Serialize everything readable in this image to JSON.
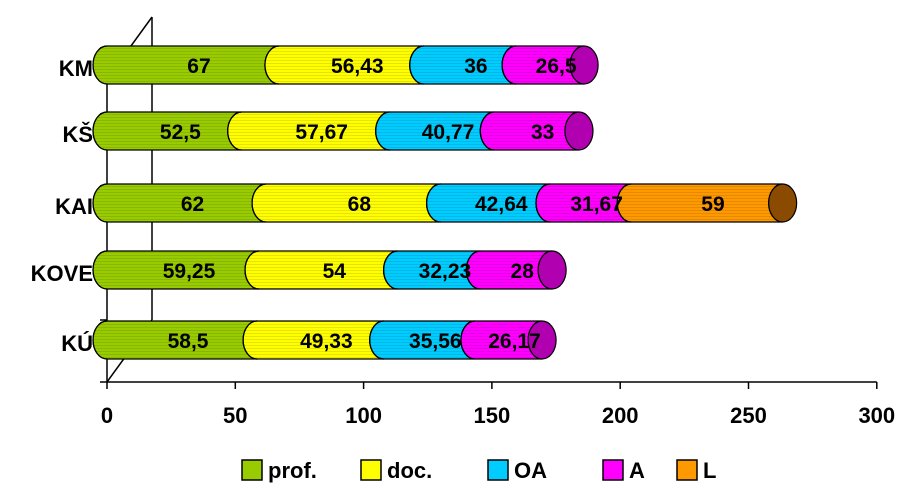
{
  "chart_data": {
    "type": "bar",
    "orientation": "horizontal",
    "stacked": true,
    "style": "3d-cylinder",
    "categories": [
      "KM",
      "KŠ",
      "KAI",
      "KOVE",
      "KÚ"
    ],
    "series": [
      {
        "name": "prof.",
        "color": "#99cc00",
        "dark": "#6f9600",
        "values": [
          67,
          52.5,
          62,
          59.25,
          58.5
        ],
        "labels": [
          "67",
          "52,5",
          "62",
          "59,25",
          "58,5"
        ]
      },
      {
        "name": "doc.",
        "color": "#ffff00",
        "dark": "#c9c900",
        "values": [
          56.43,
          57.67,
          68,
          54,
          49.33
        ],
        "labels": [
          "56,43",
          "57,67",
          "68",
          "54",
          "49,33"
        ]
      },
      {
        "name": "OA",
        "color": "#00ccff",
        "dark": "#0096c0",
        "values": [
          36,
          40.77,
          42.64,
          32.23,
          35.56
        ],
        "labels": [
          "36",
          "40,77",
          "42,64",
          "32,23",
          "35,56"
        ]
      },
      {
        "name": "A",
        "color": "#ff00ff",
        "dark": "#b000b0",
        "values": [
          26.5,
          33,
          31.67,
          28,
          26.17
        ],
        "labels": [
          "26,5",
          "33",
          "31,67",
          "28",
          "26,17"
        ]
      },
      {
        "name": "L",
        "color": "#ff9900",
        "dark": "#8a4a00",
        "values": [
          null,
          null,
          59,
          null,
          null
        ],
        "labels": [
          "",
          "",
          "59",
          "",
          ""
        ]
      }
    ],
    "xlim": [
      0,
      300
    ],
    "xticks": [
      "0",
      "50",
      "100",
      "150",
      "200",
      "250",
      "300"
    ],
    "grid": false,
    "legend": "bottom"
  }
}
